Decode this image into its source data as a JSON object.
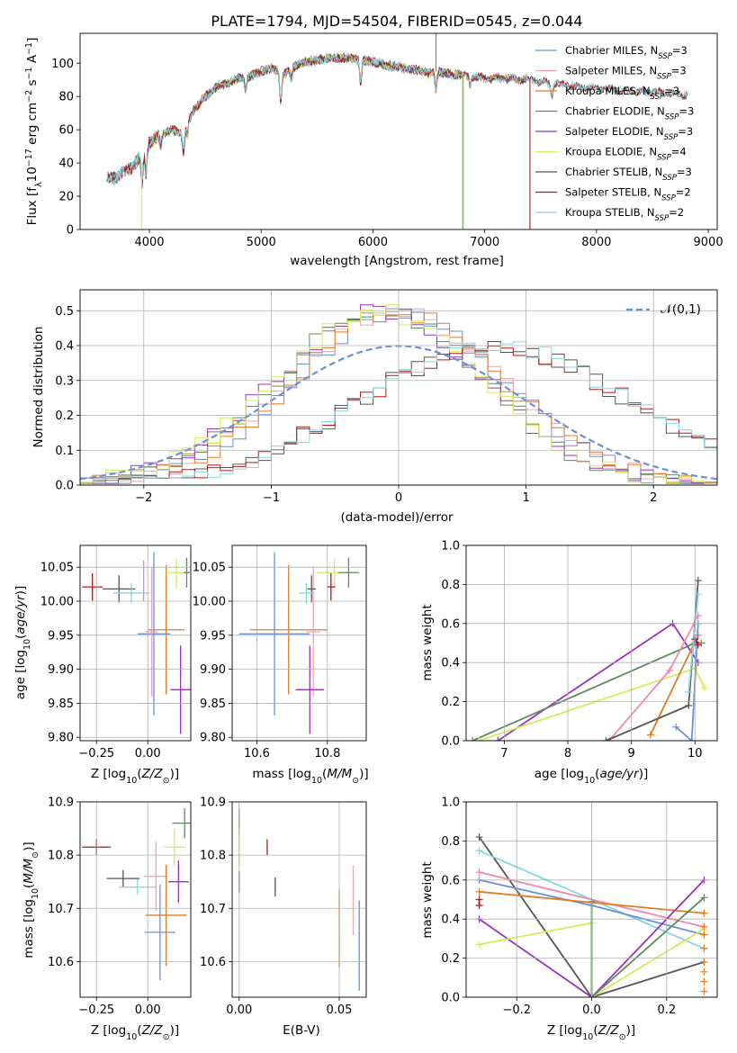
{
  "title": "PLATE=1794, MJD=54504, FIBERID=0545, z=0.044",
  "colors": {
    "Chabrier MILES": "#6b8fd8",
    "Salpeter MILES": "#e6a7b8",
    "Kroupa MILES": "#e07c22",
    "Chabrier ELODIE": "#5e8a5e",
    "Salpeter ELODIE": "#9a33b8",
    "Kroupa ELODIE": "#d4ec5a",
    "Chabrier STELIB": "#555555",
    "Salpeter STELIB": "#b01818",
    "Kroupa STELIB": "#86d6e0",
    "Salpeter MILES (mass)": "#ee88b0"
  },
  "chart_data": [
    {
      "id": "spectrum",
      "type": "line",
      "title": "PLATE=1794, MJD=54504, FIBERID=0545, z=0.044",
      "xlabel": "wavelength [Angstrom, rest frame]",
      "ylabel": "Flux [f_λ 10^-17 erg cm^-2 s^-1 A^-1]",
      "xlim": [
        3380,
        9080
      ],
      "ylim": [
        0,
        118
      ],
      "xticks": [
        4000,
        5000,
        6000,
        7000,
        8000,
        9000
      ],
      "yticks": [
        0,
        20,
        40,
        60,
        80,
        100
      ],
      "grid": false,
      "legend_position": "top-right",
      "continuum": [
        [
          3620,
          30
        ],
        [
          3700,
          32
        ],
        [
          3800,
          35
        ],
        [
          3900,
          42
        ],
        [
          4000,
          52
        ],
        [
          4100,
          57
        ],
        [
          4200,
          60
        ],
        [
          4300,
          58
        ],
        [
          4400,
          72
        ],
        [
          4500,
          80
        ],
        [
          4600,
          86
        ],
        [
          4700,
          88
        ],
        [
          4800,
          91
        ],
        [
          4900,
          92
        ],
        [
          5000,
          95
        ],
        [
          5100,
          97
        ],
        [
          5200,
          93
        ],
        [
          5300,
          98
        ],
        [
          5400,
          101
        ],
        [
          5500,
          102
        ],
        [
          5600,
          103
        ],
        [
          5700,
          103
        ],
        [
          5800,
          103
        ],
        [
          5900,
          102
        ],
        [
          6000,
          101
        ],
        [
          6100,
          99
        ],
        [
          6200,
          98
        ],
        [
          6300,
          97
        ],
        [
          6400,
          96
        ],
        [
          6500,
          94
        ],
        [
          6600,
          95
        ],
        [
          6700,
          93
        ],
        [
          6800,
          93
        ],
        [
          6900,
          92
        ],
        [
          7000,
          91
        ],
        [
          7200,
          91
        ],
        [
          7400,
          90
        ],
        [
          7600,
          88
        ],
        [
          7800,
          86
        ],
        [
          8000,
          85
        ],
        [
          8200,
          84
        ],
        [
          8400,
          83
        ],
        [
          8600,
          82
        ],
        [
          8800,
          81
        ]
      ],
      "features": [
        [
          3935,
          -18
        ],
        [
          3970,
          -16
        ],
        [
          4102,
          -8
        ],
        [
          4305,
          -12
        ],
        [
          4340,
          -7
        ],
        [
          4861,
          -8
        ],
        [
          5175,
          -18
        ],
        [
          5270,
          -6
        ],
        [
          5890,
          -14
        ],
        [
          6563,
          -10
        ],
        [
          6870,
          -5
        ],
        [
          7600,
          -8
        ]
      ],
      "series": [
        {
          "name": "Chabrier MILES, N_SSP=3",
          "color": "#6b8fd8",
          "range": [
            3620,
            7400
          ]
        },
        {
          "name": "Salpeter MILES, N_SSP=3",
          "color": "#e6a7b8",
          "range": [
            3620,
            7400
          ]
        },
        {
          "name": "Kroupa MILES, N_SSP=3",
          "color": "#e07c22",
          "range": [
            3620,
            7400
          ]
        },
        {
          "name": "Chabrier ELODIE, N_SSP=3",
          "color": "#5e8a5e",
          "range": [
            3900,
            6800
          ]
        },
        {
          "name": "Salpeter ELODIE, N_SSP=3",
          "color": "#9a33b8",
          "range": [
            3900,
            6800
          ]
        },
        {
          "name": "Kroupa ELODIE, N_SSP=4",
          "color": "#d4ec5a",
          "range": [
            3900,
            6800
          ]
        },
        {
          "name": "Chabrier STELIB, N_SSP=3",
          "color": "#555555",
          "range": [
            3620,
            8820
          ]
        },
        {
          "name": "Salpeter STELIB, N_SSP=2",
          "color": "#b01818",
          "range": [
            3620,
            8820
          ]
        },
        {
          "name": "Kroupa STELIB, N_SSP=2",
          "color": "#86d6e0",
          "range": [
            3620,
            8820
          ]
        }
      ]
    },
    {
      "id": "residuals",
      "type": "line",
      "xlabel": "(data-model)/error",
      "ylabel": "Normed distribution",
      "xlim": [
        -2.5,
        2.5
      ],
      "ylim": [
        0,
        0.56
      ],
      "xticks": [
        -2,
        -1,
        0,
        1,
        2
      ],
      "yticks": [
        0.0,
        0.1,
        0.2,
        0.3,
        0.4,
        0.5
      ],
      "grid": true,
      "legend_position": "top-right",
      "reference": {
        "name": "𝒩(0,1)",
        "mu": 0,
        "sigma": 1
      },
      "groups": [
        {
          "kind": "miles",
          "series": [
            "Chabrier MILES",
            "Salpeter MILES",
            "Kroupa MILES"
          ]
        },
        {
          "kind": "elodie",
          "series": [
            "Chabrier ELODIE",
            "Salpeter ELODIE",
            "Kroupa ELODIE"
          ]
        },
        {
          "kind": "stelib",
          "series": [
            "Chabrier STELIB",
            "Salpeter STELIB",
            "Kroupa STELIB"
          ]
        }
      ]
    },
    {
      "id": "age_vs_Z",
      "type": "scatter",
      "xlabel": "Z [log10(Z/Z☉)]",
      "ylabel": "age [log10(age/yr)]",
      "xlim": [
        -0.33,
        0.21
      ],
      "ylim": [
        9.795,
        10.082
      ],
      "xticks": [
        -0.25,
        0.0
      ],
      "yticks": [
        9.8,
        9.85,
        9.9,
        9.95,
        10.0,
        10.05
      ],
      "grid": true,
      "points": [
        {
          "series": "Salpeter STELIB",
          "x": -0.27,
          "y": 10.021,
          "xerr": 0.05,
          "yerr": 0.02
        },
        {
          "series": "Chabrier STELIB",
          "x": -0.14,
          "y": 10.018,
          "xerr": 0.08,
          "yerr": 0.02
        },
        {
          "series": "Kroupa STELIB",
          "x": -0.08,
          "y": 10.012,
          "xerr": 0.09,
          "yerr": 0.015
        },
        {
          "series": "Kroupa MILES",
          "x": 0.09,
          "y": 9.958,
          "xerr": 0.09,
          "yerr": 0.095
        },
        {
          "series": "Chabrier MILES",
          "x": 0.03,
          "y": 9.952,
          "xerr": 0.08,
          "yerr": 0.12
        },
        {
          "series": "Salpeter MILES",
          "x": 0.02,
          "y": 9.955,
          "xerr": 0.03,
          "yerr": 0.095
        },
        {
          "series": "Kroupa ELODIE",
          "x": 0.14,
          "y": 10.042,
          "xerr": 0.05,
          "yerr": 0.022
        },
        {
          "series": "Chabrier ELODIE",
          "x": 0.19,
          "y": 10.042,
          "xerr": 0.015,
          "yerr": 0.022
        },
        {
          "series": "Salpeter ELODIE",
          "x": 0.16,
          "y": 9.87,
          "xerr": 0.05,
          "yerr": 0.065
        },
        {
          "series": "Salpeter MILES (mass)",
          "x": -0.02,
          "y": 10.03,
          "xerr": 0.0,
          "yerr": 0.03
        }
      ]
    },
    {
      "id": "age_vs_mass",
      "type": "scatter",
      "xlabel": "mass [log10(M/M☉)]",
      "ylabel": "",
      "xlim": [
        10.53,
        10.91
      ],
      "ylim": [
        9.795,
        10.082
      ],
      "xticks": [
        10.6,
        10.8
      ],
      "yticks": [
        9.8,
        9.85,
        9.9,
        9.95,
        10.0,
        10.05
      ],
      "grid": true,
      "points": [
        {
          "series": "Chabrier MILES",
          "x": 10.65,
          "y": 9.952,
          "xerr": 0.1,
          "yerr": 0.12
        },
        {
          "series": "Kroupa MILES",
          "x": 10.69,
          "y": 9.958,
          "xerr": 0.11,
          "yerr": 0.095
        },
        {
          "series": "Salpeter MILES",
          "x": 10.76,
          "y": 9.955,
          "xerr": 0.02,
          "yerr": 0.095
        },
        {
          "series": "Salpeter ELODIE",
          "x": 10.75,
          "y": 9.87,
          "xerr": 0.04,
          "yerr": 0.065
        },
        {
          "series": "Kroupa ELODIE",
          "x": 10.82,
          "y": 10.042,
          "xerr": 0.05,
          "yerr": 0.022
        },
        {
          "series": "Chabrier ELODIE",
          "x": 10.86,
          "y": 10.042,
          "xerr": 0.03,
          "yerr": 0.022
        },
        {
          "series": "Salpeter STELIB",
          "x": 10.81,
          "y": 10.021,
          "xerr": 0.012,
          "yerr": 0.02
        },
        {
          "series": "Chabrier STELIB",
          "x": 10.755,
          "y": 10.018,
          "xerr": 0.012,
          "yerr": 0.02
        },
        {
          "series": "Kroupa STELIB",
          "x": 10.74,
          "y": 10.012,
          "xerr": 0.02,
          "yerr": 0.015
        }
      ]
    },
    {
      "id": "weight_vs_age",
      "type": "line",
      "xlabel": "age [log10(age/yr)]",
      "ylabel": "mass weight",
      "xlim": [
        6.4,
        10.35
      ],
      "ylim": [
        0,
        1.0
      ],
      "xticks": [
        7,
        8,
        9,
        10
      ],
      "yticks": [
        0.0,
        0.2,
        0.4,
        0.6,
        0.8,
        1.0
      ],
      "grid": true,
      "series": [
        {
          "series": "Salpeter ELODIE",
          "points": [
            [
              6.9,
              0.0
            ],
            [
              9.65,
              0.6
            ],
            [
              10.05,
              0.4
            ]
          ]
        },
        {
          "series": "Chabrier ELODIE",
          "points": [
            [
              6.5,
              0.0
            ],
            [
              10.0,
              0.5
            ],
            [
              10.1,
              0.5
            ]
          ]
        },
        {
          "series": "Kroupa ELODIE",
          "points": [
            [
              6.6,
              0.0
            ],
            [
              10.0,
              0.37
            ],
            [
              10.15,
              0.27
            ]
          ]
        },
        {
          "series": "Salpeter MILES (mass)",
          "points": [
            [
              8.65,
              0.0
            ],
            [
              9.6,
              0.36
            ],
            [
              10.05,
              0.64
            ]
          ]
        },
        {
          "series": "Kroupa MILES",
          "points": [
            [
              9.3,
              0.03
            ],
            [
              10.05,
              0.54
            ]
          ]
        },
        {
          "series": "Chabrier MILES",
          "points": [
            [
              9.7,
              0.07
            ],
            [
              9.95,
              0.0
            ],
            [
              10.05,
              0.6
            ]
          ]
        },
        {
          "series": "Chabrier STELIB",
          "points": [
            [
              8.6,
              0.0
            ],
            [
              9.9,
              0.18
            ],
            [
              10.05,
              0.82
            ]
          ]
        },
        {
          "series": "Kroupa STELIB",
          "points": [
            [
              9.9,
              0.25
            ],
            [
              10.05,
              0.75
            ]
          ]
        },
        {
          "series": "Salpeter STELIB",
          "points": [
            [
              10.0,
              0.52
            ],
            [
              10.05,
              0.49
            ]
          ]
        }
      ]
    },
    {
      "id": "mass_vs_Z",
      "type": "scatter",
      "xlabel": "Z [log10(Z/Z☉)]",
      "ylabel": "mass [log10(M/M☉)]",
      "xlim": [
        -0.33,
        0.21
      ],
      "ylim": [
        10.533,
        10.9
      ],
      "xticks": [
        -0.25,
        0.0
      ],
      "yticks": [
        10.6,
        10.7,
        10.8,
        10.9
      ],
      "grid": true,
      "points": [
        {
          "series": "Salpeter STELIB",
          "x": -0.25,
          "y": 10.815,
          "xerr": 0.07,
          "yerr": 0.015
        },
        {
          "series": "Chabrier STELIB",
          "x": -0.12,
          "y": 10.756,
          "xerr": 0.08,
          "yerr": 0.016
        },
        {
          "series": "Kroupa STELIB",
          "x": -0.05,
          "y": 10.74,
          "xerr": 0.09,
          "yerr": 0.015
        },
        {
          "series": "Salpeter MILES",
          "x": 0.04,
          "y": 10.76,
          "xerr": 0.06,
          "yerr": 0.065
        },
        {
          "series": "Kroupa MILES",
          "x": 0.09,
          "y": 10.687,
          "xerr": 0.1,
          "yerr": 0.095
        },
        {
          "series": "Chabrier MILES",
          "x": 0.06,
          "y": 10.655,
          "xerr": 0.075,
          "yerr": 0.09
        },
        {
          "series": "Kroupa ELODIE",
          "x": 0.13,
          "y": 10.815,
          "xerr": 0.05,
          "yerr": 0.035
        },
        {
          "series": "Chabrier ELODIE",
          "x": 0.18,
          "y": 10.86,
          "xerr": 0.06,
          "yerr": 0.028
        },
        {
          "series": "Salpeter ELODIE",
          "x": 0.15,
          "y": 10.75,
          "xerr": 0.05,
          "yerr": 0.04
        }
      ]
    },
    {
      "id": "mass_vs_ebv",
      "type": "scatter",
      "xlabel": "E(B-V)",
      "ylabel": "",
      "xlim": [
        -0.0035,
        0.0635
      ],
      "ylim": [
        10.533,
        10.9
      ],
      "xticks": [
        0.0,
        0.05
      ],
      "yticks": [
        10.6,
        10.7,
        10.8,
        10.9
      ],
      "grid": true,
      "points": [
        {
          "series": "Chabrier ELODIE",
          "x": 0.0,
          "y": 10.86,
          "xerr": 0,
          "yerr": 0.028
        },
        {
          "series": "Kroupa ELODIE",
          "x": 0.0,
          "y": 10.815,
          "xerr": 0,
          "yerr": 0.035
        },
        {
          "series": "Salpeter ELODIE",
          "x": 0.0,
          "y": 10.75,
          "xerr": 0,
          "yerr": 0.02
        },
        {
          "series": "Salpeter STELIB",
          "x": 0.014,
          "y": 10.815,
          "xerr": 0,
          "yerr": 0.015
        },
        {
          "series": "Chabrier STELIB",
          "x": 0.018,
          "y": 10.74,
          "xerr": 0,
          "yerr": 0.018
        },
        {
          "series": "Kroupa MILES",
          "x": 0.05,
          "y": 10.662,
          "xerr": 0,
          "yerr": 0.073
        },
        {
          "series": "Salpeter MILES",
          "x": 0.057,
          "y": 10.715,
          "xerr": 0,
          "yerr": 0.065
        },
        {
          "series": "Chabrier MILES",
          "x": 0.06,
          "y": 10.63,
          "xerr": 0,
          "yerr": 0.085
        }
      ]
    },
    {
      "id": "weight_vs_Z",
      "type": "line",
      "xlabel": "Z [log10(Z/Z☉)]",
      "ylabel": "mass weight",
      "xlim": [
        -0.335,
        0.335
      ],
      "ylim": [
        0,
        1.0
      ],
      "xticks": [
        -0.2,
        0.0,
        0.2
      ],
      "yticks": [
        0.0,
        0.2,
        0.4,
        0.6,
        0.8,
        1.0
      ],
      "grid": true,
      "series": [
        {
          "series": "Chabrier STELIB",
          "points": [
            [
              -0.3,
              0.82
            ],
            [
              0.0,
              0.0
            ],
            [
              0.3,
              0.18
            ]
          ]
        },
        {
          "series": "Kroupa STELIB",
          "points": [
            [
              -0.3,
              0.75
            ],
            [
              0.3,
              0.25
            ]
          ]
        },
        {
          "series": "Salpeter MILES (mass)",
          "points": [
            [
              -0.3,
              0.64
            ],
            [
              0.3,
              0.36
            ]
          ]
        },
        {
          "series": "Chabrier MILES",
          "points": [
            [
              -0.3,
              0.6
            ],
            [
              0.0,
              0.47
            ],
            [
              0.3,
              0.32
            ]
          ]
        },
        {
          "series": "Kroupa MILES",
          "points": [
            [
              -0.3,
              0.54
            ],
            [
              0.3,
              0.43
            ]
          ]
        },
        {
          "series": "Salpeter ELODIE",
          "points": [
            [
              -0.3,
              0.4
            ],
            [
              0.0,
              0.0
            ],
            [
              0.3,
              0.6
            ]
          ]
        },
        {
          "series": "Kroupa ELODIE",
          "points": [
            [
              -0.3,
              0.27
            ],
            [
              0.0,
              0.38
            ],
            [
              0.0,
              0.0
            ],
            [
              0.3,
              0.35
            ]
          ]
        },
        {
          "series": "Chabrier ELODIE",
          "points": [
            [
              0.0,
              0.49
            ],
            [
              0.0,
              0.0
            ],
            [
              0.3,
              0.51
            ]
          ]
        },
        {
          "series": "Salpeter STELIB",
          "points": [
            [
              -0.3,
              0.5
            ],
            [
              -0.3,
              0.47
            ]
          ]
        }
      ],
      "markers_at_03": [
        0.03,
        0.08,
        0.13,
        0.18,
        0.25,
        0.32,
        0.36,
        0.43
      ]
    }
  ]
}
